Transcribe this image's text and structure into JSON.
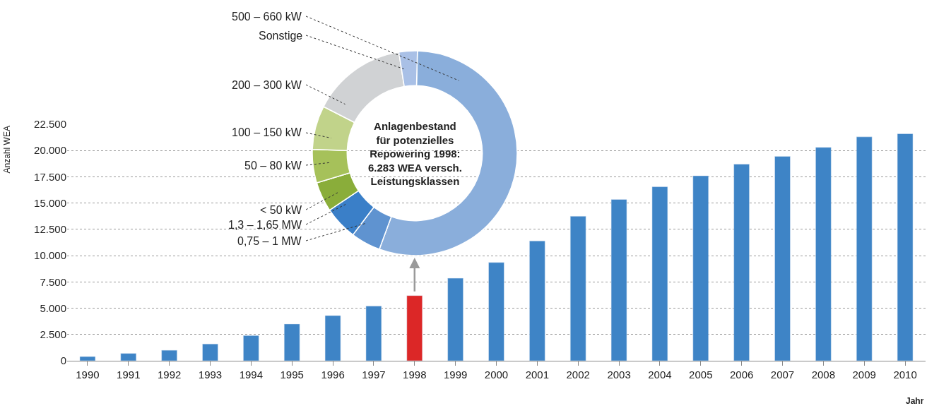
{
  "chart_data": [
    {
      "type": "bar",
      "ylabel": "Anzahl WEA",
      "xlabel": "Jahr",
      "categories": [
        "1990",
        "1991",
        "1992",
        "1993",
        "1994",
        "1995",
        "1996",
        "1997",
        "1998",
        "1999",
        "2000",
        "2001",
        "2002",
        "2003",
        "2004",
        "2005",
        "2006",
        "2007",
        "2008",
        "2009",
        "2010"
      ],
      "values": [
        400,
        700,
        1000,
        1600,
        2400,
        3500,
        4300,
        5200,
        6200,
        7850,
        9350,
        11400,
        13750,
        15350,
        16550,
        17600,
        18700,
        19450,
        20300,
        21300,
        21600
      ],
      "colors": [
        "#3e84c6",
        "#3e84c6",
        "#3e84c6",
        "#3e84c6",
        "#3e84c6",
        "#3e84c6",
        "#3e84c6",
        "#3e84c6",
        "#dc2727",
        "#3e84c6",
        "#3e84c6",
        "#3e84c6",
        "#3e84c6",
        "#3e84c6",
        "#3e84c6",
        "#3e84c6",
        "#3e84c6",
        "#3e84c6",
        "#3e84c6",
        "#3e84c6",
        "#3e84c6"
      ],
      "ylim": [
        0,
        22500
      ],
      "yticks": [
        0,
        {
          "value": 2500,
          "label": "2.500"
        },
        {
          "value": 5000,
          "label": "5.000"
        },
        {
          "value": 7500,
          "label": "7.500"
        },
        {
          "value": 10000,
          "label": "10.000"
        },
        {
          "value": 12500,
          "label": "12.500"
        },
        {
          "value": 15000,
          "label": "15.000"
        },
        {
          "value": 17500,
          "label": "17.500"
        },
        {
          "value": 20000,
          "label": "20.000"
        },
        {
          "value": 22500,
          "label": "22.500"
        }
      ],
      "grid": "y"
    },
    {
      "type": "donut",
      "title": "Anlagenbestand\nfür potenzielles\nRepowering 1998:\n6.283 WEA versch.\nLeistungsklassen",
      "categories": [
        "500 – 660 kW",
        "0,75 – 1 MW",
        "1,3 – 1,65 MW",
        "< 50 kW",
        "50 – 80 kW",
        "100 – 150 kW",
        "200 – 300 kW",
        "Sonstige"
      ],
      "values": [
        55.2,
        4.7,
        5.3,
        4.7,
        5.3,
        6.9,
        15.0,
        2.9
      ],
      "colors": [
        "#8aaedb",
        "#5f93d0",
        "#3a7fc8",
        "#8aad3a",
        "#a6c15a",
        "#c1d38a",
        "#d0d2d4",
        "#a9c0e6"
      ]
    }
  ]
}
